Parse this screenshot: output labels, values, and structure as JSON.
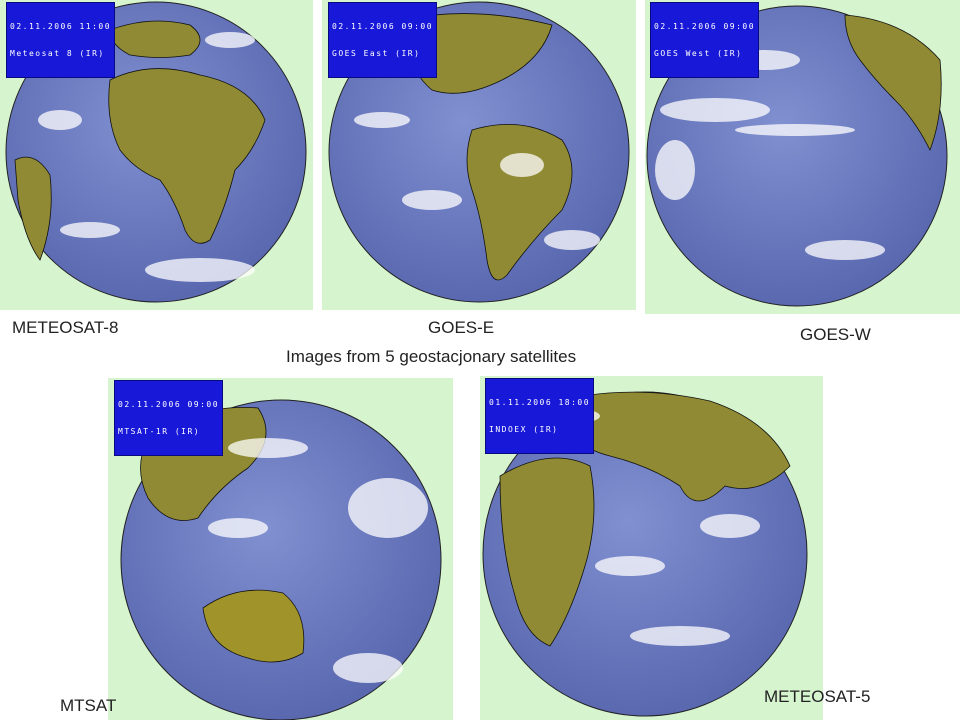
{
  "caption": "Images from 5 geostacjonary satellites",
  "colors": {
    "panel_bg": "#d6f5cf",
    "ocean": "#6f7fc4",
    "land": "#8f8a33",
    "cloud": "#ffffff",
    "stamp_bg": "#1818d8"
  },
  "satellites": [
    {
      "name": "METEOSAT-8",
      "stamp_date": "02.11.2006 11:00",
      "stamp_id": "Meteosat 8 (IR)"
    },
    {
      "name": "GOES-E",
      "stamp_date": "02.11.2006 09:00",
      "stamp_id": "GOES East (IR)"
    },
    {
      "name": "GOES-W",
      "stamp_date": "02.11.2006 09:00",
      "stamp_id": "GOES West (IR)"
    },
    {
      "name": "MTSAT",
      "stamp_date": "02.11.2006 09:00",
      "stamp_id": "MTSAT-1R (IR)"
    },
    {
      "name": "METEOSAT-5",
      "stamp_date": "01.11.2006 18:00",
      "stamp_id": "INDOEX (IR)"
    }
  ]
}
